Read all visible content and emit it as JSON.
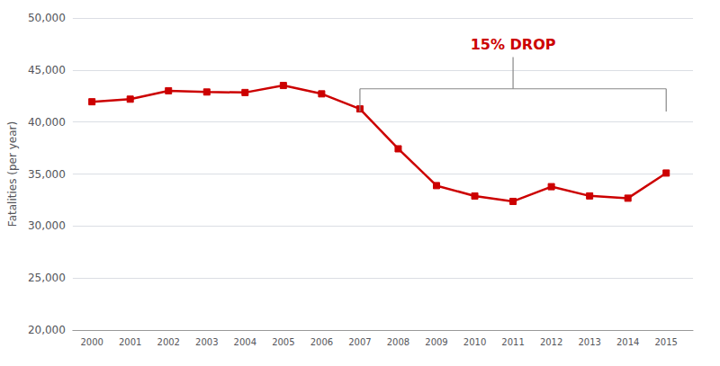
{
  "chart_data": {
    "type": "line",
    "x": [
      2000,
      2001,
      2002,
      2003,
      2004,
      2005,
      2006,
      2007,
      2008,
      2009,
      2010,
      2011,
      2012,
      2013,
      2014,
      2015
    ],
    "values": [
      41945,
      42196,
      43005,
      42884,
      42836,
      43510,
      42708,
      41259,
      37423,
      33883,
      32885,
      32367,
      33782,
      32894,
      32675,
      35092
    ],
    "color": "#CC0000",
    "marker": "square",
    "ylabel": "Fatalities (per year)",
    "xlim": [
      1999.5,
      2015.7
    ],
    "xticks": [
      2000,
      2001,
      2002,
      2003,
      2004,
      2005,
      2006,
      2007,
      2008,
      2009,
      2010,
      2011,
      2012,
      2013,
      2014,
      2015
    ],
    "ylim": [
      20000,
      50000
    ],
    "yticks": [
      {
        "value": 20000,
        "label": "20,000"
      },
      {
        "value": 25000,
        "label": "25,000"
      },
      {
        "value": 30000,
        "label": "30,000"
      },
      {
        "value": 35000,
        "label": "35,000"
      },
      {
        "value": 40000,
        "label": "40,000"
      },
      {
        "value": 45000,
        "label": "45,000"
      },
      {
        "value": 50000,
        "label": "50,000"
      }
    ],
    "grid": true,
    "annotations": [
      {
        "text": "15% DROP",
        "x": [
          2007,
          2015
        ],
        "color": "#CC0000"
      }
    ]
  }
}
